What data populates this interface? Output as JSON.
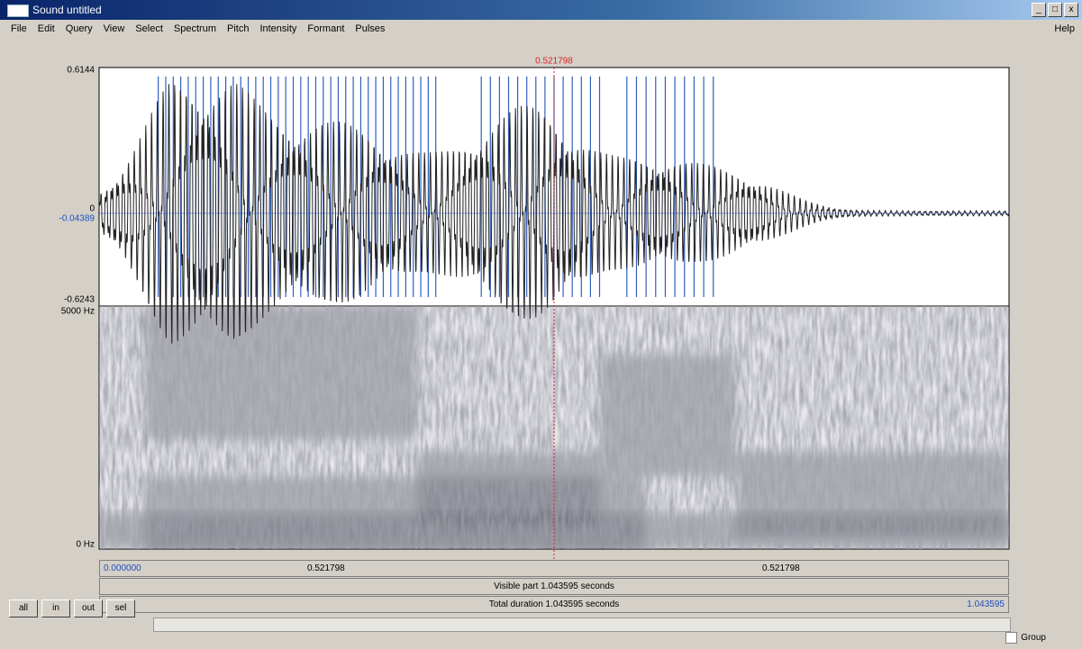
{
  "window": {
    "title": "Sound untitled",
    "menu": [
      "File",
      "Edit",
      "Query",
      "View",
      "Select",
      "Spectrum",
      "Pitch",
      "Intensity",
      "Formant",
      "Pulses"
    ],
    "help": "Help"
  },
  "waveform": {
    "top_label": "0.6144",
    "zero_label": "0",
    "cursor_amp_label": "-0.04389",
    "bottom_label": "-0.6243"
  },
  "spectrogram": {
    "top_label": "5000 Hz",
    "bottom_label": "0 Hz"
  },
  "cursor": {
    "label": "0.521798"
  },
  "time_bar": {
    "start": "0.000000",
    "left_half": "0.521798",
    "right_half": "0.521798",
    "end": "1.043595"
  },
  "visible_part": "Visible part 1.043595 seconds",
  "total_duration": "Total duration 1.043595 seconds",
  "buttons": [
    "all",
    "in",
    "out",
    "sel"
  ],
  "group": "Group"
}
